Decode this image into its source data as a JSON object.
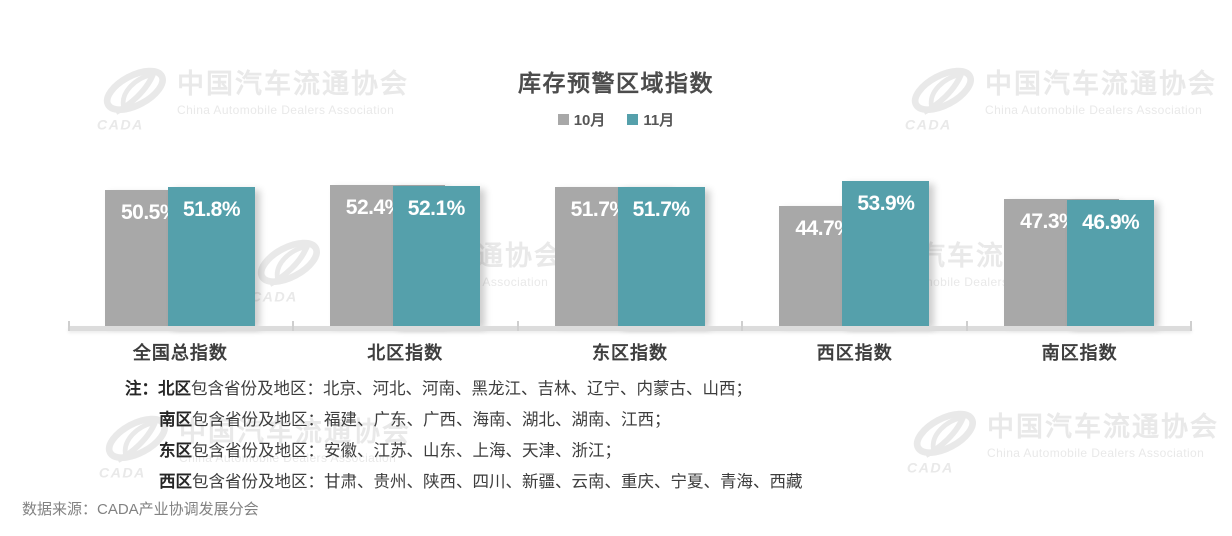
{
  "title": "库存预警区域指数",
  "chart_data": {
    "type": "bar",
    "categories": [
      "全国总指数",
      "北区指数",
      "东区指数",
      "西区指数",
      "南区指数"
    ],
    "series": [
      {
        "name": "10月",
        "color": "#a8a8a8",
        "values": [
          50.5,
          52.4,
          51.7,
          44.7,
          47.3
        ]
      },
      {
        "name": "11月",
        "color": "#55a0ab",
        "values": [
          51.8,
          52.1,
          51.7,
          53.9,
          46.9
        ]
      }
    ],
    "value_suffix": "%",
    "ylim": [
      0,
      55
    ],
    "legend_position": "top",
    "grid": false,
    "axis_color": "#dcdcdc",
    "label_color": "#ffffff"
  },
  "notes": {
    "prefix": "注：",
    "lines": [
      {
        "bold": "北区",
        "text": "包含省份及地区：北京、河北、河南、黑龙江、吉林、辽宁、内蒙古、山西；"
      },
      {
        "bold": "南区",
        "text": "包含省份及地区：福建、广东、广西、海南、湖北、湖南、江西；"
      },
      {
        "bold": "东区",
        "text": "包含省份及地区：安徽、江苏、山东、上海、天津、浙江；"
      },
      {
        "bold": "西区",
        "text": "包含省份及地区：甘肃、贵州、陕西、四川、新疆、云南、重庆、宁夏、青海、西藏"
      }
    ]
  },
  "source": "数据来源：CADA产业协调发展分会",
  "watermark": {
    "cn": "中国汽车流通协会",
    "en": "China Automobile Dealers Association",
    "logo_text": "CADA"
  }
}
